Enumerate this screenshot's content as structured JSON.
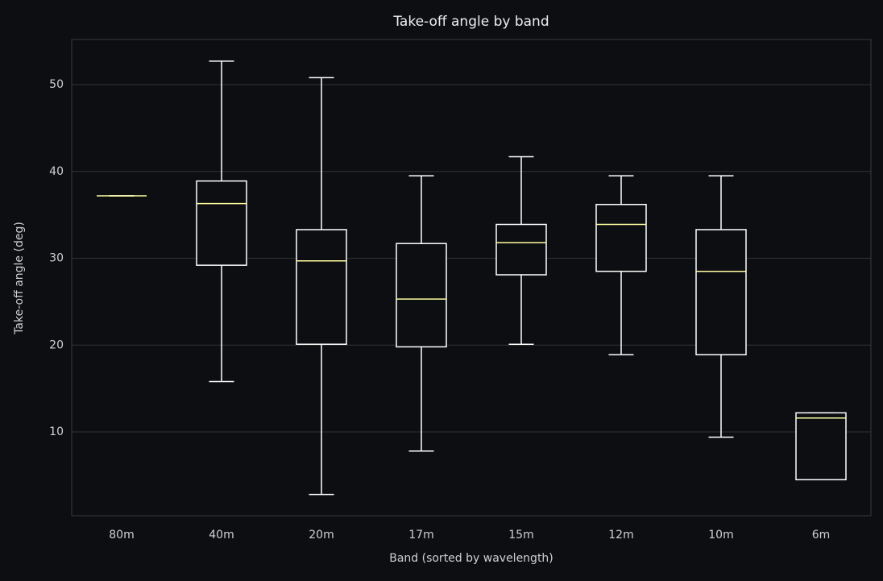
{
  "chart_data": {
    "type": "box",
    "title": "Take-off angle by band",
    "x_label": "Band (sorted by wavelength)",
    "y_label": "Take-off angle (deg)",
    "categories": [
      "80m",
      "40m",
      "20m",
      "17m",
      "15m",
      "12m",
      "10m",
      "6m"
    ],
    "whisker_low": [
      37.2,
      15.8,
      2.8,
      7.8,
      20.1,
      18.9,
      9.4,
      4.5
    ],
    "q1": [
      37.2,
      29.2,
      20.1,
      19.8,
      28.1,
      28.5,
      18.9,
      4.5
    ],
    "median": [
      37.2,
      36.3,
      29.7,
      25.3,
      31.8,
      33.9,
      28.5,
      11.6
    ],
    "q3": [
      37.2,
      38.9,
      33.3,
      31.7,
      33.9,
      36.2,
      33.3,
      12.2
    ],
    "whisker_high": [
      37.2,
      52.7,
      50.8,
      39.5,
      41.7,
      39.5,
      39.5,
      12.2
    ],
    "box_color": "#ffffff",
    "median_color": "#ffffa0",
    "ylim": [
      0.35,
      55.2
    ],
    "yticks": [
      10,
      20,
      30,
      40,
      50
    ],
    "grid": true
  }
}
